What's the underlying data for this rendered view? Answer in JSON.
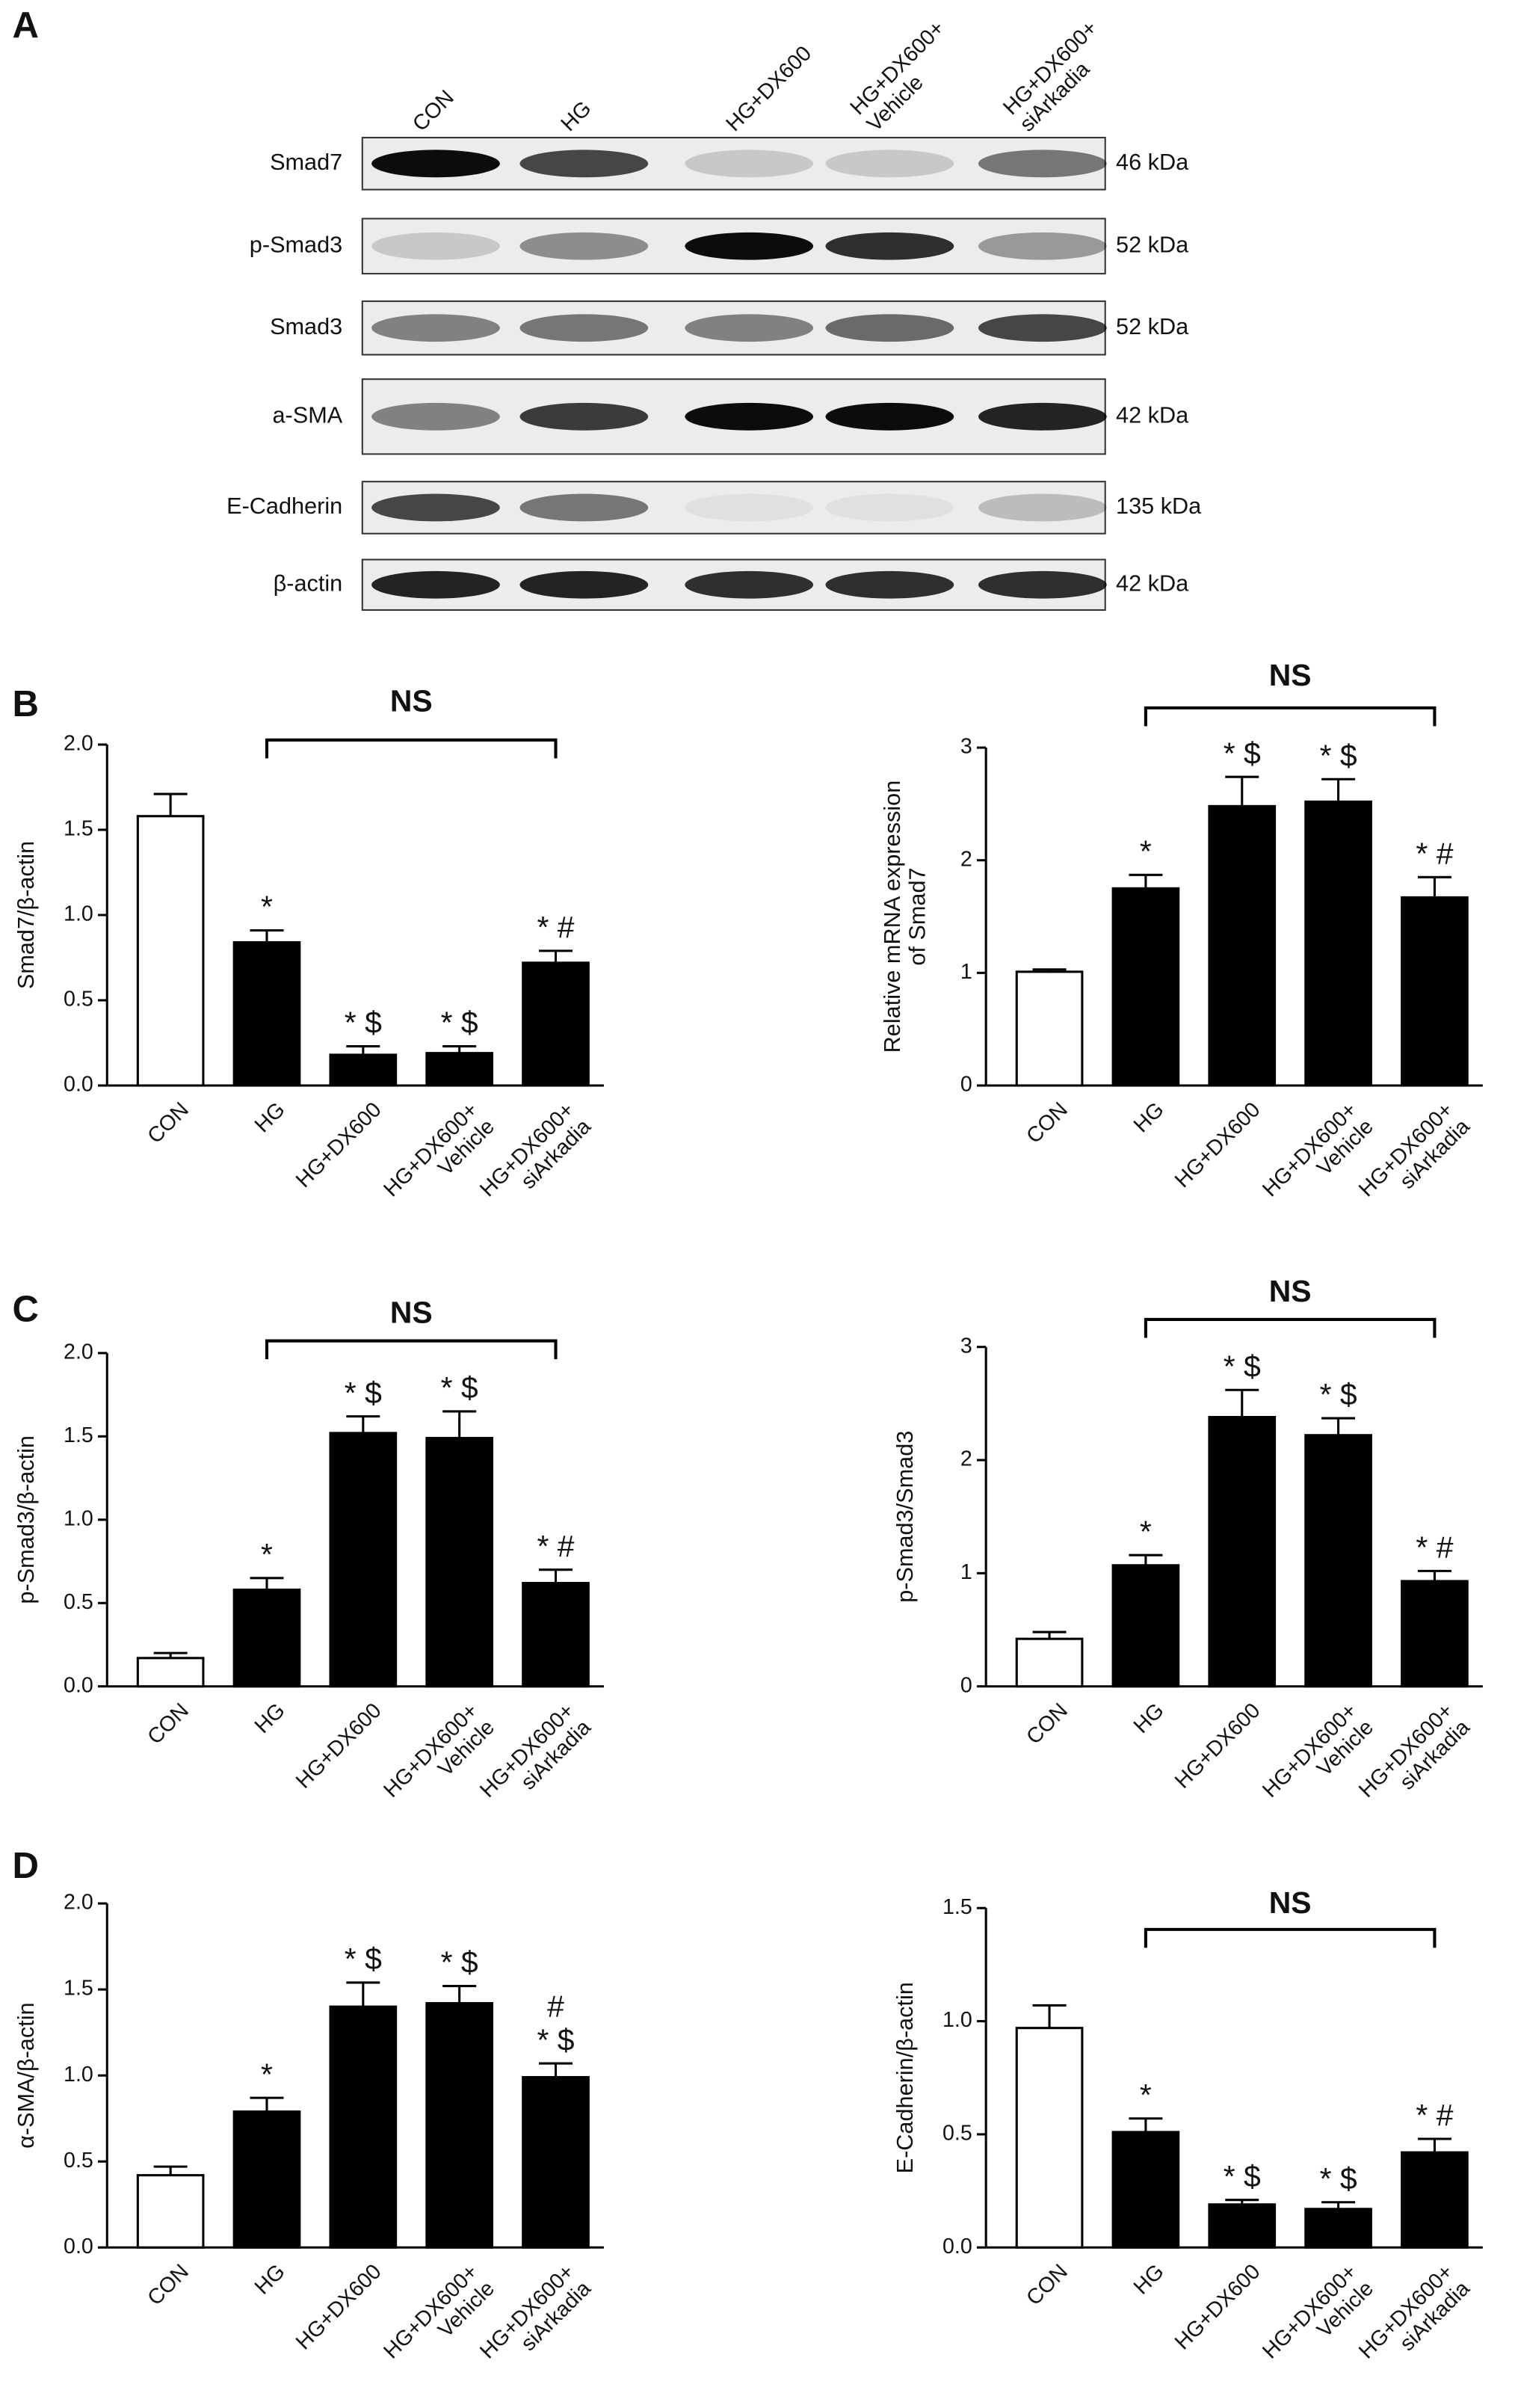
{
  "blot": {
    "panel_label": "A",
    "lanes": [
      "CON",
      "HG",
      "HG+DX600",
      "HG+DX600+\nVehicle",
      "HG+DX600+\nsiArkadia"
    ],
    "rows": [
      {
        "protein": "Smad7",
        "size": "46 kDa"
      },
      {
        "protein": "p-Smad3",
        "size": "52 kDa"
      },
      {
        "protein": "Smad3",
        "size": "52 kDa"
      },
      {
        "protein": "a-SMA",
        "size": "42 kDa"
      },
      {
        "protein": "E-Cadherin",
        "size": "135 kDa"
      },
      {
        "protein": "β-actin",
        "size": "42 kDa"
      }
    ]
  },
  "chart_data": [
    {
      "type": "bar",
      "panel_label": "B",
      "ylabel": "Smad7/β-actin",
      "bracket_label": "NS",
      "categories": [
        "CON",
        "HG",
        "HG+DX600",
        "HG+DX600+\nVehicle",
        "HG+DX600+\nsiArkadia"
      ],
      "values": [
        1.58,
        0.84,
        0.18,
        0.19,
        0.72
      ],
      "errors": [
        0.13,
        0.07,
        0.05,
        0.04,
        0.07
      ],
      "annotations": [
        null,
        "*",
        "* $",
        "* $",
        "* #"
      ],
      "colors": [
        "#ffffff",
        "#000000",
        "#000000",
        "#000000",
        "#000000"
      ],
      "ylim": [
        0,
        2
      ],
      "yticks": [
        {
          "value": 0,
          "label": "0.0"
        },
        0.5,
        {
          "value": 1,
          "label": "1.0"
        },
        1.5,
        {
          "value": 2,
          "label": "2.0"
        }
      ]
    },
    {
      "type": "bar",
      "ylabel": "Relative mRNA expression\nof Smad7",
      "bracket_label": "NS",
      "categories": [
        "CON",
        "HG",
        "HG+DX600",
        "HG+DX600+\nVehicle",
        "HG+DX600+\nsiArkadia"
      ],
      "values": [
        1.01,
        1.75,
        2.48,
        2.52,
        1.67
      ],
      "errors": [
        0.02,
        0.12,
        0.26,
        0.2,
        0.18
      ],
      "annotations": [
        null,
        "*",
        "* $",
        "* $",
        "* #"
      ],
      "colors": [
        "#ffffff",
        "#000000",
        "#000000",
        "#000000",
        "#000000"
      ],
      "ylim": [
        0,
        3
      ],
      "yticks": [
        0,
        1,
        2,
        3
      ]
    },
    {
      "type": "bar",
      "panel_label": "C",
      "ylabel": "p-Smad3/β-actin",
      "bracket_label": "NS",
      "categories": [
        "CON",
        "HG",
        "HG+DX600",
        "HG+DX600+\nVehicle",
        "HG+DX600+\nsiArkadia"
      ],
      "values": [
        0.17,
        0.58,
        1.52,
        1.49,
        0.62
      ],
      "errors": [
        0.03,
        0.07,
        0.1,
        0.16,
        0.08
      ],
      "annotations": [
        null,
        "*",
        "* $",
        "* $",
        "* #"
      ],
      "colors": [
        "#ffffff",
        "#000000",
        "#000000",
        "#000000",
        "#000000"
      ],
      "ylim": [
        0,
        2
      ],
      "yticks": [
        {
          "value": 0,
          "label": "0.0"
        },
        0.5,
        {
          "value": 1,
          "label": "1.0"
        },
        1.5,
        {
          "value": 2,
          "label": "2.0"
        }
      ]
    },
    {
      "type": "bar",
      "ylabel": "p-Smad3/Smad3",
      "bracket_label": "NS",
      "categories": [
        "CON",
        "HG",
        "HG+DX600",
        "HG+DX600+\nVehicle",
        "HG+DX600+\nsiArkadia"
      ],
      "values": [
        0.42,
        1.07,
        2.38,
        2.22,
        0.93
      ],
      "errors": [
        0.06,
        0.09,
        0.24,
        0.15,
        0.09
      ],
      "annotations": [
        null,
        "*",
        "* $",
        "* $",
        "* #"
      ],
      "colors": [
        "#ffffff",
        "#000000",
        "#000000",
        "#000000",
        "#000000"
      ],
      "ylim": [
        0,
        3
      ],
      "yticks": [
        0,
        1,
        2,
        3
      ]
    },
    {
      "type": "bar",
      "panel_label": "D",
      "ylabel": "α-SMA/β-actin",
      "categories": [
        "CON",
        "HG",
        "HG+DX600",
        "HG+DX600+\nVehicle",
        "HG+DX600+\nsiArkadia"
      ],
      "values": [
        0.42,
        0.79,
        1.4,
        1.42,
        0.99
      ],
      "errors": [
        0.05,
        0.08,
        0.14,
        0.1,
        0.08
      ],
      "annotations": [
        null,
        "*",
        "* $",
        "* $",
        "#\n* $"
      ],
      "colors": [
        "#ffffff",
        "#000000",
        "#000000",
        "#000000",
        "#000000"
      ],
      "ylim": [
        0,
        2
      ],
      "yticks": [
        {
          "value": 0,
          "label": "0.0"
        },
        0.5,
        {
          "value": 1,
          "label": "1.0"
        },
        1.5,
        {
          "value": 2,
          "label": "2.0"
        }
      ]
    },
    {
      "type": "bar",
      "ylabel": "E-Cadherin/β-actin",
      "bracket_label": "NS",
      "categories": [
        "CON",
        "HG",
        "HG+DX600",
        "HG+DX600+\nVehicle",
        "HG+DX600+\nsiArkadia"
      ],
      "values": [
        0.97,
        0.51,
        0.19,
        0.17,
        0.42
      ],
      "errors": [
        0.1,
        0.06,
        0.02,
        0.03,
        0.06
      ],
      "annotations": [
        null,
        "*",
        "* $",
        "* $",
        "* #"
      ],
      "colors": [
        "#ffffff",
        "#000000",
        "#000000",
        "#000000",
        "#000000"
      ],
      "ylim": [
        0,
        1.5
      ],
      "yticks": [
        {
          "value": 0,
          "label": "0.0"
        },
        0.5,
        {
          "value": 1,
          "label": "1.0"
        },
        1.5
      ]
    }
  ]
}
